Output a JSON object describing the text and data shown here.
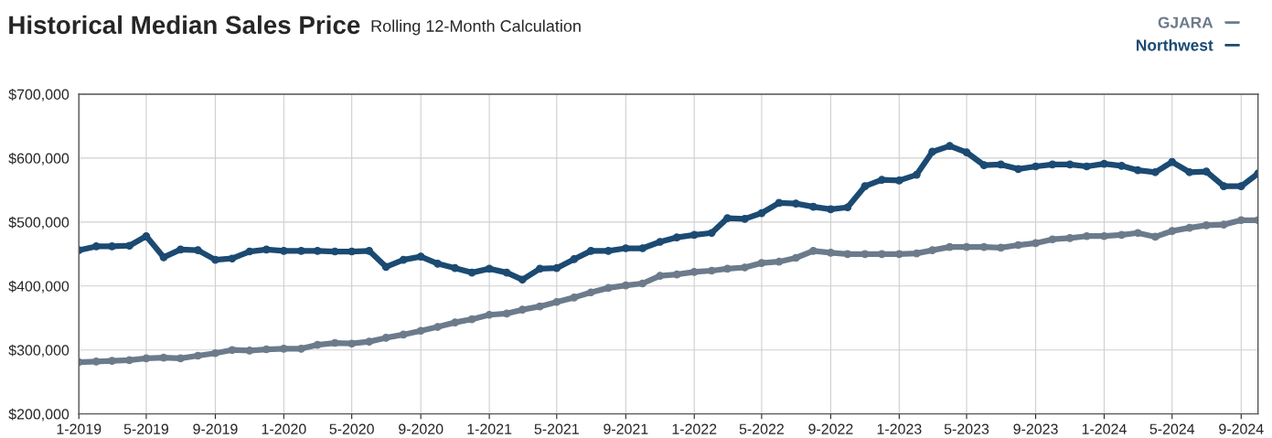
{
  "chart_data": {
    "type": "line",
    "title": "Historical Median Sales Price",
    "subtitle": "Rolling 12-Month Calculation",
    "x": [
      "2019-01",
      "2019-02",
      "2019-03",
      "2019-04",
      "2019-05",
      "2019-06",
      "2019-07",
      "2019-08",
      "2019-09",
      "2019-10",
      "2019-11",
      "2019-12",
      "2020-01",
      "2020-02",
      "2020-03",
      "2020-04",
      "2020-05",
      "2020-06",
      "2020-07",
      "2020-08",
      "2020-09",
      "2020-10",
      "2020-11",
      "2020-12",
      "2021-01",
      "2021-02",
      "2021-03",
      "2021-04",
      "2021-05",
      "2021-06",
      "2021-07",
      "2021-08",
      "2021-09",
      "2021-10",
      "2021-11",
      "2021-12",
      "2022-01",
      "2022-02",
      "2022-03",
      "2022-04",
      "2022-05",
      "2022-06",
      "2022-07",
      "2022-08",
      "2022-09",
      "2022-10",
      "2022-11",
      "2022-12",
      "2023-01",
      "2023-02",
      "2023-03",
      "2023-04",
      "2023-05",
      "2023-06",
      "2023-07",
      "2023-08",
      "2023-09",
      "2023-10",
      "2023-11",
      "2023-12",
      "2024-01",
      "2024-02",
      "2024-03",
      "2024-04",
      "2024-05",
      "2024-06",
      "2024-07",
      "2024-08",
      "2024-09",
      "2024-10"
    ],
    "series": [
      {
        "name": "GJARA",
        "color": "#6c7b8b",
        "values": [
          281000,
          282000,
          283000,
          284000,
          287000,
          288000,
          287000,
          291000,
          295000,
          300000,
          299000,
          301000,
          302000,
          302000,
          308000,
          311000,
          310000,
          313000,
          319000,
          324000,
          330000,
          336000,
          343000,
          348000,
          355000,
          357000,
          363000,
          368000,
          375000,
          382000,
          390000,
          397000,
          401000,
          404000,
          416000,
          418000,
          422000,
          424000,
          427000,
          429000,
          436000,
          438000,
          444000,
          455000,
          452000,
          450000,
          450000,
          450000,
          450000,
          451000,
          456000,
          461000,
          461000,
          461000,
          460000,
          464000,
          467000,
          473000,
          475000,
          478000,
          478000,
          480000,
          483000,
          477000,
          486000,
          491000,
          495000,
          496000,
          503000,
          503000
        ]
      },
      {
        "name": "Northwest",
        "color": "#1b4a72",
        "values": [
          456000,
          462000,
          462000,
          463000,
          478000,
          445000,
          457000,
          456000,
          441000,
          443000,
          454000,
          457000,
          455000,
          455000,
          455000,
          454000,
          454000,
          455000,
          430000,
          441000,
          446000,
          435000,
          428000,
          421000,
          427000,
          421000,
          410000,
          427000,
          428000,
          442000,
          455000,
          455000,
          459000,
          459000,
          469000,
          476000,
          480000,
          483000,
          506000,
          505000,
          514000,
          530000,
          529000,
          524000,
          520000,
          523000,
          556000,
          566000,
          565000,
          574000,
          610000,
          619000,
          609000,
          589000,
          590000,
          583000,
          587000,
          590000,
          590000,
          587000,
          591000,
          588000,
          581000,
          578000,
          594000,
          578000,
          579000,
          556000,
          556000,
          576000
        ]
      }
    ],
    "xlim": [
      "2019-01",
      "2024-10"
    ],
    "xticks": [
      {
        "value": "2019-01",
        "label": "1-2019"
      },
      {
        "value": "2019-05",
        "label": "5-2019"
      },
      {
        "value": "2019-09",
        "label": "9-2019"
      },
      {
        "value": "2020-01",
        "label": "1-2020"
      },
      {
        "value": "2020-05",
        "label": "5-2020"
      },
      {
        "value": "2020-09",
        "label": "9-2020"
      },
      {
        "value": "2021-01",
        "label": "1-2021"
      },
      {
        "value": "2021-05",
        "label": "5-2021"
      },
      {
        "value": "2021-09",
        "label": "9-2021"
      },
      {
        "value": "2022-01",
        "label": "1-2022"
      },
      {
        "value": "2022-05",
        "label": "5-2022"
      },
      {
        "value": "2022-09",
        "label": "9-2022"
      },
      {
        "value": "2023-01",
        "label": "1-2023"
      },
      {
        "value": "2023-05",
        "label": "5-2023"
      },
      {
        "value": "2023-09",
        "label": "9-2023"
      },
      {
        "value": "2024-01",
        "label": "1-2024"
      },
      {
        "value": "2024-05",
        "label": "5-2024"
      },
      {
        "value": "2024-09",
        "label": "9-2024"
      }
    ],
    "ylim": [
      200000,
      700000
    ],
    "yticks": [
      {
        "value": 200000,
        "label": "$200,000"
      },
      {
        "value": 300000,
        "label": "$300,000"
      },
      {
        "value": 400000,
        "label": "$400,000"
      },
      {
        "value": 500000,
        "label": "$500,000"
      },
      {
        "value": 600000,
        "label": "$600,000"
      },
      {
        "value": 700000,
        "label": "$700,000"
      }
    ],
    "grid": true,
    "legend": "top right",
    "marker": "circle",
    "line_style": "solid"
  }
}
